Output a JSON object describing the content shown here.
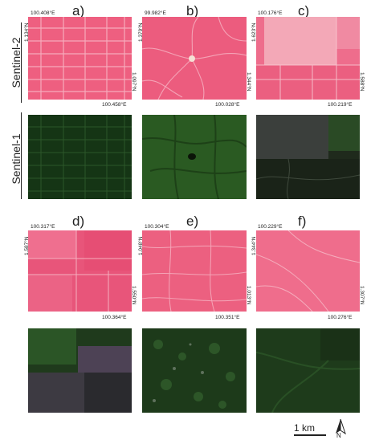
{
  "rows": {
    "sentinel2": "Sentinel-2",
    "sentinel1": "Sentinel-1"
  },
  "panels": [
    {
      "label": "a)",
      "top_lon": "100.408°E",
      "left_lat": "1.134°N",
      "right_lat": "1.097°N",
      "bottom_lon": "100.458°E"
    },
    {
      "label": "b)",
      "top_lon": "99.982°E",
      "left_lat": "1.379°N",
      "right_lat": "1.344°N",
      "bottom_lon": "100.028°E"
    },
    {
      "label": "c)",
      "top_lon": "100.176°E",
      "left_lat": "1.623°N",
      "right_lat": "1.588°N",
      "bottom_lon": "100.219°E"
    },
    {
      "label": "d)",
      "top_lon": "100.317°E",
      "left_lat": "1.587°N",
      "right_lat": "1.550°N",
      "bottom_lon": "100.364°E"
    },
    {
      "label": "e)",
      "top_lon": "100.304°E",
      "left_lat": "1.048°N",
      "right_lat": "1.013°N",
      "bottom_lon": "100.351°E"
    },
    {
      "label": "f)",
      "top_lon": "100.229°E",
      "left_lat": "1.344°N",
      "right_lat": "1.307°N",
      "bottom_lon": "100.276°E"
    }
  ],
  "scale": {
    "label": "1 km"
  },
  "north": {
    "label": "N"
  },
  "colors": {
    "sentinel2_base": "#ee5f7e",
    "sentinel1_base": "#1c3a1a"
  }
}
